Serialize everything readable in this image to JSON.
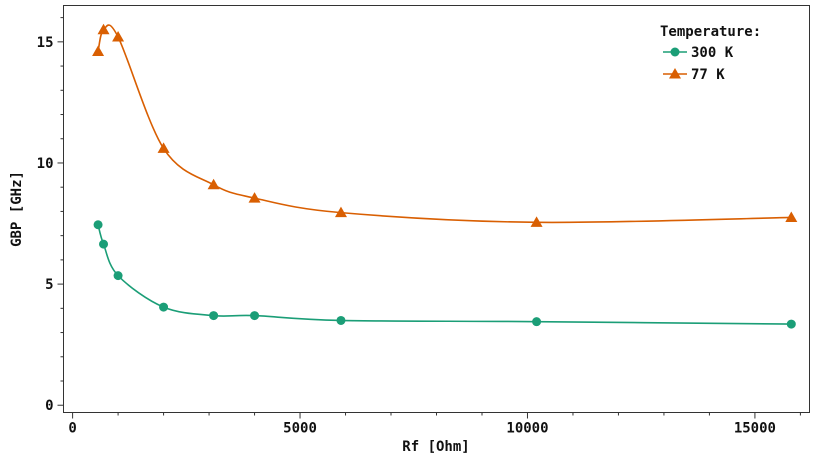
{
  "chart_data": {
    "type": "line",
    "xlabel": "Rf [Ohm]",
    "ylabel": "GBP [GHz]",
    "xlim": [
      -200,
      16200
    ],
    "ylim": [
      -0.3,
      16.5
    ],
    "xticks": [
      0,
      5000,
      10000,
      15000
    ],
    "xticklabels": [
      "0",
      "5000",
      "10000",
      "15000"
    ],
    "yticks": [
      0,
      5,
      10,
      15
    ],
    "yticklabels": [
      "0",
      "5",
      "10",
      "15"
    ],
    "grid": false,
    "legend": {
      "title": "Temperature:",
      "placement": "top-right"
    },
    "series": [
      {
        "name": "300 K",
        "color": "#1b9e77",
        "marker": "circle",
        "x": [
          560,
          680,
          1000,
          2000,
          3100,
          4000,
          5900,
          10200,
          15800
        ],
        "y": [
          7.45,
          6.65,
          5.35,
          4.05,
          3.7,
          3.7,
          3.5,
          3.45,
          3.35
        ]
      },
      {
        "name": "77 K",
        "color": "#d95f02",
        "marker": "triangle",
        "x": [
          560,
          680,
          1000,
          2000,
          3100,
          4000,
          5900,
          10200,
          15800
        ],
        "y": [
          14.6,
          15.5,
          15.2,
          10.6,
          9.1,
          8.55,
          7.95,
          7.55,
          7.75
        ]
      }
    ]
  }
}
